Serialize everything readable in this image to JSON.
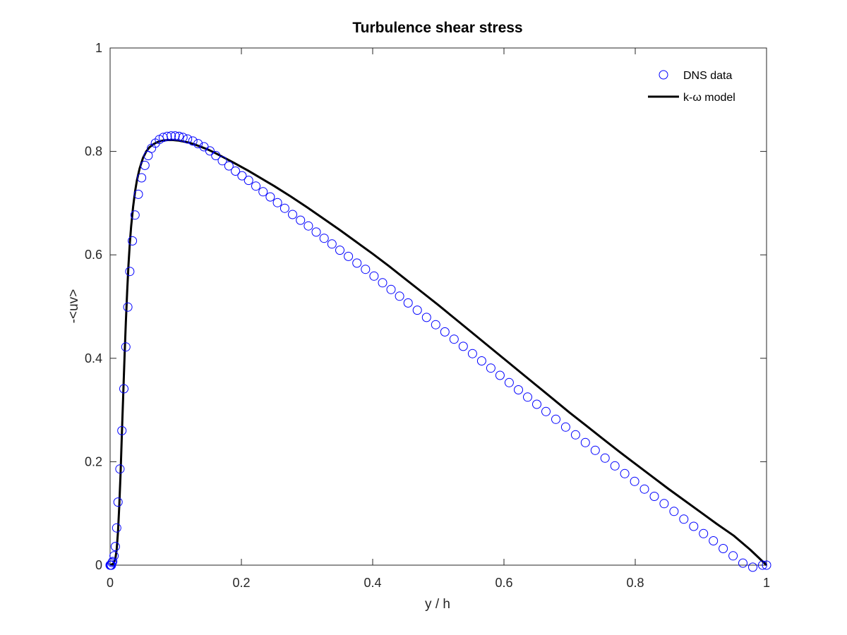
{
  "chart_data": {
    "type": "line",
    "title": "Turbulence shear stress",
    "xlabel": "y / h",
    "ylabel": "-<uv>",
    "xlim": [
      0,
      1
    ],
    "ylim": [
      0,
      1
    ],
    "xticks": [
      0,
      0.2,
      0.4,
      0.6,
      0.8,
      1
    ],
    "xtick_labels": [
      "0",
      "0.2",
      "0.4",
      "0.6",
      "0.8",
      "1"
    ],
    "yticks": [
      0,
      0.2,
      0.4,
      0.6,
      0.8,
      1
    ],
    "ytick_labels": [
      "0",
      "0.2",
      "0.4",
      "0.6",
      "0.8",
      "1"
    ],
    "grid": false,
    "legend_position": "top-right",
    "series": [
      {
        "name": "DNS data",
        "style": "markers",
        "marker": "open-circle",
        "color": "#0000ff",
        "x": [
          0,
          0.001,
          0.002,
          0.003,
          0.004,
          0.006,
          0.008,
          0.01,
          0.012,
          0.015,
          0.018,
          0.021,
          0.024,
          0.027,
          0.03,
          0.034,
          0.038,
          0.043,
          0.048,
          0.053,
          0.058,
          0.063,
          0.069,
          0.075,
          0.081,
          0.087,
          0.093,
          0.099,
          0.105,
          0.111,
          0.118,
          0.126,
          0.134,
          0.143,
          0.152,
          0.161,
          0.171,
          0.181,
          0.191,
          0.201,
          0.211,
          0.222,
          0.233,
          0.244,
          0.255,
          0.266,
          0.278,
          0.29,
          0.302,
          0.314,
          0.326,
          0.338,
          0.35,
          0.363,
          0.376,
          0.389,
          0.402,
          0.415,
          0.428,
          0.441,
          0.454,
          0.468,
          0.482,
          0.496,
          0.51,
          0.524,
          0.538,
          0.552,
          0.566,
          0.58,
          0.594,
          0.608,
          0.622,
          0.636,
          0.65,
          0.664,
          0.679,
          0.694,
          0.709,
          0.724,
          0.739,
          0.754,
          0.769,
          0.784,
          0.799,
          0.814,
          0.829,
          0.844,
          0.859,
          0.874,
          0.889,
          0.904,
          0.919,
          0.934,
          0.949,
          0.964,
          0.979,
          0.994,
          1.0
        ],
        "y": [
          0,
          0.0,
          0.0,
          0.005,
          0.007,
          0.018,
          0.036,
          0.072,
          0.122,
          0.186,
          0.26,
          0.341,
          0.422,
          0.499,
          0.568,
          0.627,
          0.677,
          0.717,
          0.749,
          0.773,
          0.792,
          0.806,
          0.816,
          0.823,
          0.827,
          0.829,
          0.83,
          0.83,
          0.829,
          0.827,
          0.824,
          0.82,
          0.815,
          0.809,
          0.801,
          0.792,
          0.782,
          0.772,
          0.762,
          0.753,
          0.744,
          0.733,
          0.722,
          0.712,
          0.701,
          0.69,
          0.678,
          0.667,
          0.656,
          0.644,
          0.632,
          0.621,
          0.609,
          0.597,
          0.584,
          0.572,
          0.559,
          0.546,
          0.533,
          0.52,
          0.507,
          0.493,
          0.479,
          0.465,
          0.451,
          0.437,
          0.423,
          0.409,
          0.395,
          0.381,
          0.367,
          0.353,
          0.339,
          0.325,
          0.311,
          0.297,
          0.282,
          0.267,
          0.252,
          0.237,
          0.222,
          0.207,
          0.192,
          0.177,
          0.162,
          0.147,
          0.133,
          0.119,
          0.104,
          0.089,
          0.075,
          0.061,
          0.047,
          0.032,
          0.018,
          0.004,
          -0.004,
          0.0,
          0.0
        ]
      },
      {
        "name": "k-ω model",
        "style": "line",
        "color": "#000000",
        "x": [
          0,
          0.005,
          0.008,
          0.01,
          0.012,
          0.014,
          0.016,
          0.018,
          0.02,
          0.022,
          0.024,
          0.026,
          0.028,
          0.03,
          0.032,
          0.035,
          0.038,
          0.041,
          0.045,
          0.05,
          0.055,
          0.06,
          0.066,
          0.072,
          0.08,
          0.088,
          0.096,
          0.104,
          0.112,
          0.12,
          0.13,
          0.14,
          0.15,
          0.16,
          0.175,
          0.19,
          0.21,
          0.23,
          0.25,
          0.275,
          0.3,
          0.325,
          0.35,
          0.375,
          0.4,
          0.425,
          0.45,
          0.475,
          0.5,
          0.525,
          0.55,
          0.575,
          0.6,
          0.625,
          0.65,
          0.675,
          0.7,
          0.725,
          0.75,
          0.775,
          0.8,
          0.825,
          0.85,
          0.875,
          0.9,
          0.925,
          0.95,
          0.975,
          1.0
        ],
        "y": [
          0,
          0.003,
          0.012,
          0.03,
          0.065,
          0.115,
          0.18,
          0.255,
          0.33,
          0.405,
          0.47,
          0.53,
          0.58,
          0.622,
          0.655,
          0.693,
          0.722,
          0.745,
          0.767,
          0.787,
          0.8,
          0.808,
          0.814,
          0.818,
          0.821,
          0.822,
          0.822,
          0.821,
          0.819,
          0.817,
          0.813,
          0.808,
          0.803,
          0.797,
          0.787,
          0.777,
          0.763,
          0.748,
          0.733,
          0.713,
          0.692,
          0.67,
          0.648,
          0.625,
          0.602,
          0.578,
          0.553,
          0.528,
          0.503,
          0.477,
          0.451,
          0.425,
          0.399,
          0.373,
          0.347,
          0.321,
          0.295,
          0.27,
          0.245,
          0.22,
          0.196,
          0.172,
          0.148,
          0.125,
          0.102,
          0.079,
          0.057,
          0.03,
          0.0
        ]
      }
    ]
  }
}
